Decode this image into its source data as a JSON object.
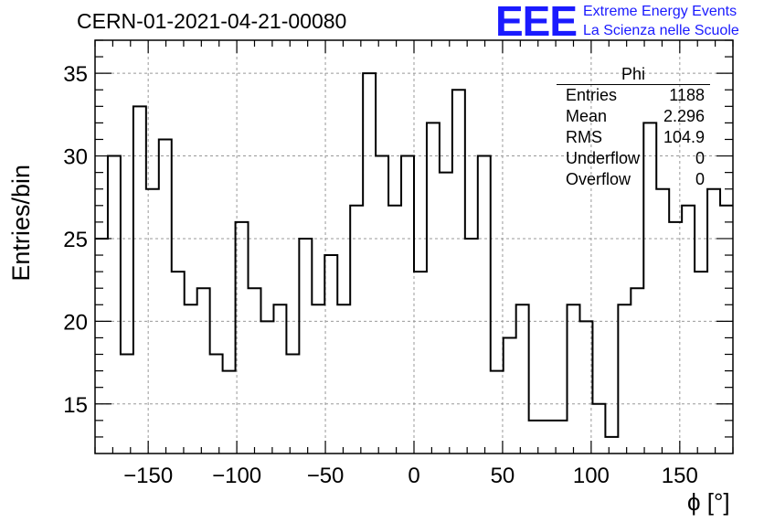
{
  "header": {
    "title": "CERN-01-2021-04-21-00080",
    "logo_text": "EEE",
    "brand_line1": "Extreme Energy Events",
    "brand_line2": "La Scienza nelle Scuole",
    "brand_color": "#1a1aff"
  },
  "stats_box": {
    "title": "Phi",
    "rows": [
      {
        "label": "Entries",
        "value": "1188"
      },
      {
        "label": "Mean",
        "value": "2.296"
      },
      {
        "label": "RMS",
        "value": "104.9"
      },
      {
        "label": "Underflow",
        "value": "0"
      },
      {
        "label": "Overflow",
        "value": "0"
      }
    ]
  },
  "chart_data": {
    "type": "bar",
    "style": "step-histogram",
    "xlabel": "ϕ [°]",
    "ylabel": "Entries/bin",
    "xlim": [
      -180,
      180
    ],
    "ylim": [
      12,
      37
    ],
    "bin_width": 7.2,
    "x_ticks": [
      -150,
      -100,
      -50,
      0,
      50,
      100,
      150
    ],
    "x_tick_labels": [
      "−150",
      "−100",
      "−50",
      "0",
      "50",
      "100",
      "150"
    ],
    "y_ticks": [
      15,
      20,
      25,
      30,
      35
    ],
    "y_tick_labels": [
      "15",
      "20",
      "25",
      "30",
      "35"
    ],
    "grid": true,
    "values": [
      25,
      30,
      18,
      33,
      28,
      31,
      23,
      21,
      22,
      18,
      17,
      26,
      22,
      20,
      21,
      18,
      25,
      21,
      24,
      21,
      27,
      35,
      30,
      27,
      30,
      23,
      32,
      29,
      34,
      25,
      30,
      17,
      19,
      21,
      14,
      14,
      14,
      21,
      20,
      15,
      13,
      21,
      22,
      32,
      28,
      26,
      27,
      23,
      28,
      27
    ]
  }
}
